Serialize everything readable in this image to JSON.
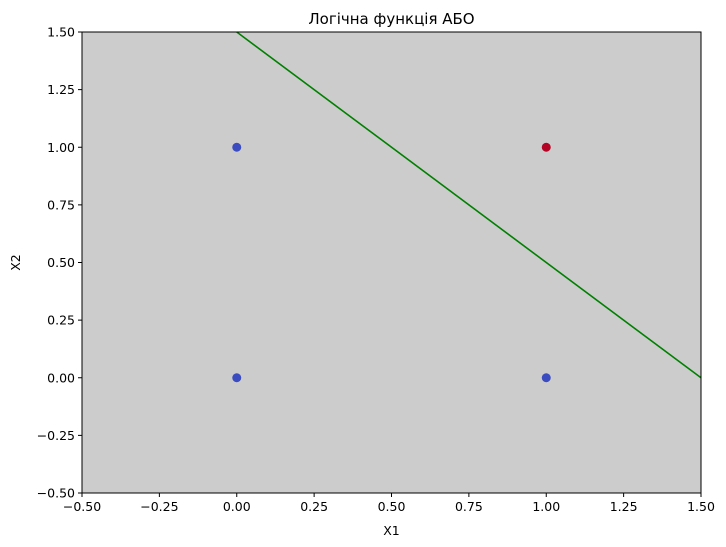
{
  "chart_data": {
    "type": "scatter",
    "title": "Логічна функція АБО",
    "xlabel": "X1",
    "ylabel": "X2",
    "xlim": [
      -0.5,
      1.5
    ],
    "ylim": [
      -0.5,
      1.5
    ],
    "xticks": [
      "−0.50",
      "−0.25",
      "0.00",
      "0.25",
      "0.50",
      "0.75",
      "1.00",
      "1.25",
      "1.50"
    ],
    "yticks": [
      "−0.50",
      "−0.25",
      "0.00",
      "0.25",
      "0.50",
      "0.75",
      "1.00",
      "1.25",
      "1.50"
    ],
    "xtick_values": [
      -0.5,
      -0.25,
      0,
      0.25,
      0.5,
      0.75,
      1.0,
      1.25,
      1.5
    ],
    "ytick_values": [
      -0.5,
      -0.25,
      0,
      0.25,
      0.5,
      0.75,
      1.0,
      1.25,
      1.5
    ],
    "background_color": "#cccccc",
    "points": [
      {
        "x": 0,
        "y": 0,
        "color": "#3b4cc0"
      },
      {
        "x": 0,
        "y": 1,
        "color": "#3b4cc0"
      },
      {
        "x": 1,
        "y": 0,
        "color": "#3b4cc0"
      },
      {
        "x": 1,
        "y": 1,
        "color": "#b40426"
      }
    ],
    "decision_line": {
      "x": [
        0.0,
        1.5
      ],
      "y": [
        1.5,
        0.0
      ],
      "color": "#008000"
    }
  }
}
